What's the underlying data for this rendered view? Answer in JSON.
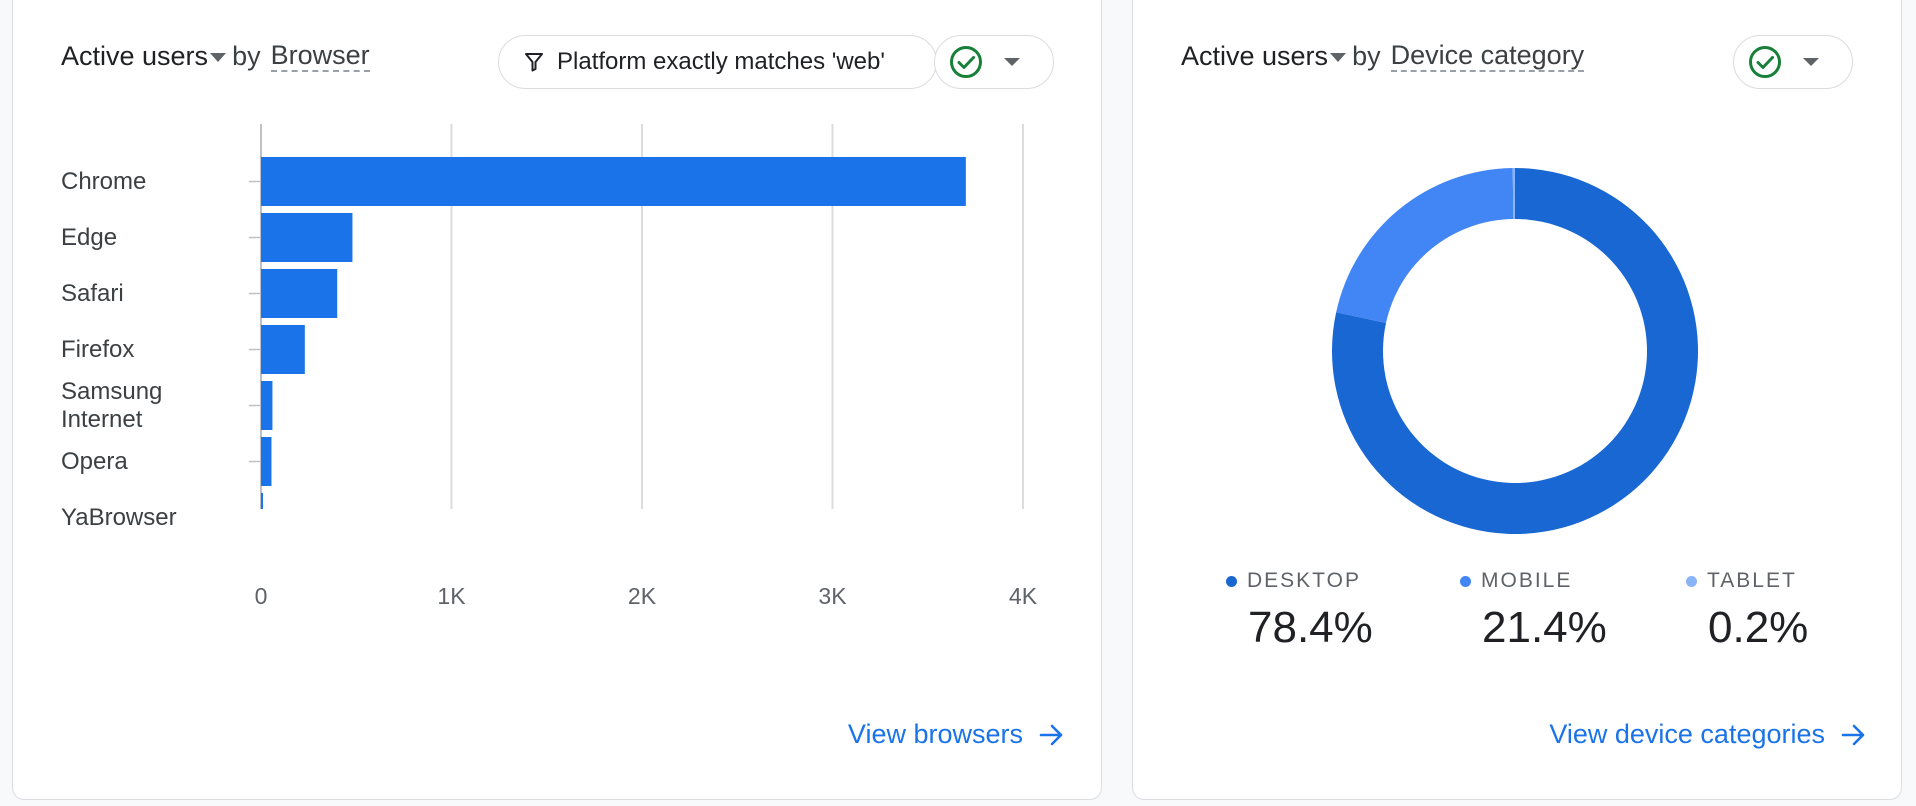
{
  "browser_card": {
    "metric": "Active users",
    "by": "by",
    "dimension": "Browser",
    "filter_label": "Platform exactly matches 'web'",
    "link_label": "View browsers",
    "chart_data": {
      "type": "bar",
      "orientation": "horizontal",
      "categories": [
        "Chrome",
        "Edge",
        "Safari",
        "Firefox",
        "Samsung Internet",
        "Opera",
        "YaBrowser"
      ],
      "values": [
        3700,
        480,
        400,
        230,
        60,
        55,
        8
      ],
      "xlim": [
        0,
        4000
      ],
      "xticks": [
        "0",
        "1K",
        "2K",
        "3K",
        "4K"
      ],
      "xtick_values": [
        0,
        1000,
        2000,
        3000,
        4000
      ],
      "grid": true,
      "color": "#1a73e8"
    }
  },
  "device_card": {
    "metric": "Active users",
    "by": "by",
    "dimension": "Device category",
    "link_label": "View device categories",
    "chart_data": {
      "type": "pie",
      "donut": true,
      "categories": [
        "DESKTOP",
        "MOBILE",
        "TABLET"
      ],
      "values": [
        78.4,
        21.4,
        0.2
      ],
      "labels": [
        "78.4%",
        "21.4%",
        "0.2%"
      ],
      "colors": [
        "#1967d2",
        "#4285f4",
        "#8ab4f8"
      ],
      "legend": "bottom"
    }
  },
  "colors": {
    "accent": "#1a73e8",
    "check": "#188038"
  },
  "icons": {
    "filter": "filter-icon",
    "check": "check-circle-icon",
    "chevron": "chevron-down-icon",
    "arrow": "arrow-right-icon"
  }
}
